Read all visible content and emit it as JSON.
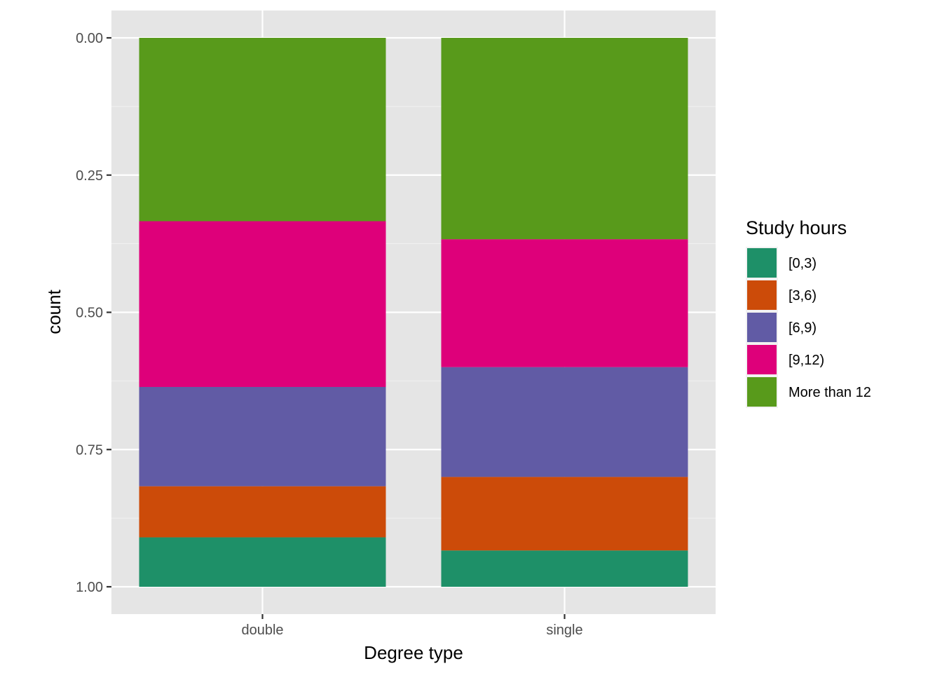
{
  "chart_data": {
    "type": "bar",
    "stacked": true,
    "position": "fill",
    "y_reversed": true,
    "title": "",
    "xlabel": "Degree type",
    "ylabel": "count",
    "categories": [
      "double",
      "single"
    ],
    "ylim": [
      0,
      1
    ],
    "y_ticks": [
      "0.00",
      "0.25",
      "0.50",
      "0.75",
      "1.00"
    ],
    "grid": true,
    "legend_position": "right",
    "legend_title": "Study hours",
    "series": [
      {
        "name": "[0,3)",
        "color": "#1B9E77",
        "values": [
          0.09,
          0.066
        ]
      },
      {
        "name": "[3,6)",
        "color": "#D95F02",
        "values": [
          0.093,
          0.134
        ]
      },
      {
        "name": "[6,9)",
        "color": "#7570B3",
        "values": [
          0.181,
          0.2
        ]
      },
      {
        "name": "[9,12)",
        "color": "#E7298A",
        "values": [
          0.302,
          0.233
        ]
      },
      {
        "name": "More than 12",
        "color": "#66A61E",
        "values": [
          0.334,
          0.367
        ]
      }
    ],
    "series_render_colors": [
      "#1E9068",
      "#CC4B09",
      "#615BA5",
      "#DE007A",
      "#589A1B"
    ]
  }
}
